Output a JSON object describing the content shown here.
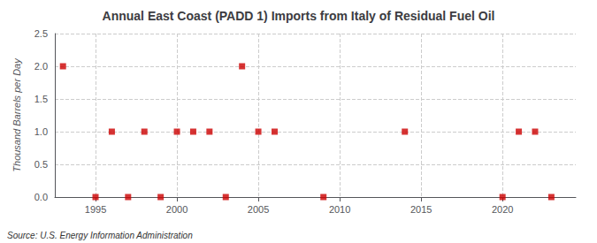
{
  "chart_data": {
    "type": "scatter",
    "title": "Annual East Coast (PADD 1) Imports from Italy of Residual Fuel Oil",
    "ylabel": "Thousand Barrels per Day",
    "annotations": [
      "Source: U.S. Energy Information Administration"
    ],
    "x": [
      1993,
      1995,
      1996,
      1997,
      1998,
      1999,
      2000,
      2001,
      2002,
      2003,
      2004,
      2005,
      2006,
      2009,
      2014,
      2020,
      2021,
      2022,
      2023
    ],
    "values": [
      2.0,
      0.0,
      1.0,
      0.0,
      1.0,
      0.0,
      1.0,
      1.0,
      1.0,
      0.0,
      2.0,
      1.0,
      1.0,
      0.0,
      1.0,
      0.0,
      1.0,
      1.0,
      0.0
    ],
    "color": "#cc0000",
    "marker": "square",
    "xlim": [
      1992.5,
      2024.5
    ],
    "xticks": [
      1995,
      2000,
      2005,
      2010,
      2015,
      2020
    ],
    "ylim": [
      0.0,
      2.5
    ],
    "yticks": [
      {
        "value": 0,
        "label": "0.0"
      },
      0.5,
      {
        "value": 1,
        "label": "1.0"
      },
      1.5,
      {
        "value": 2,
        "label": "2.0"
      },
      2.5
    ],
    "grid": true
  }
}
